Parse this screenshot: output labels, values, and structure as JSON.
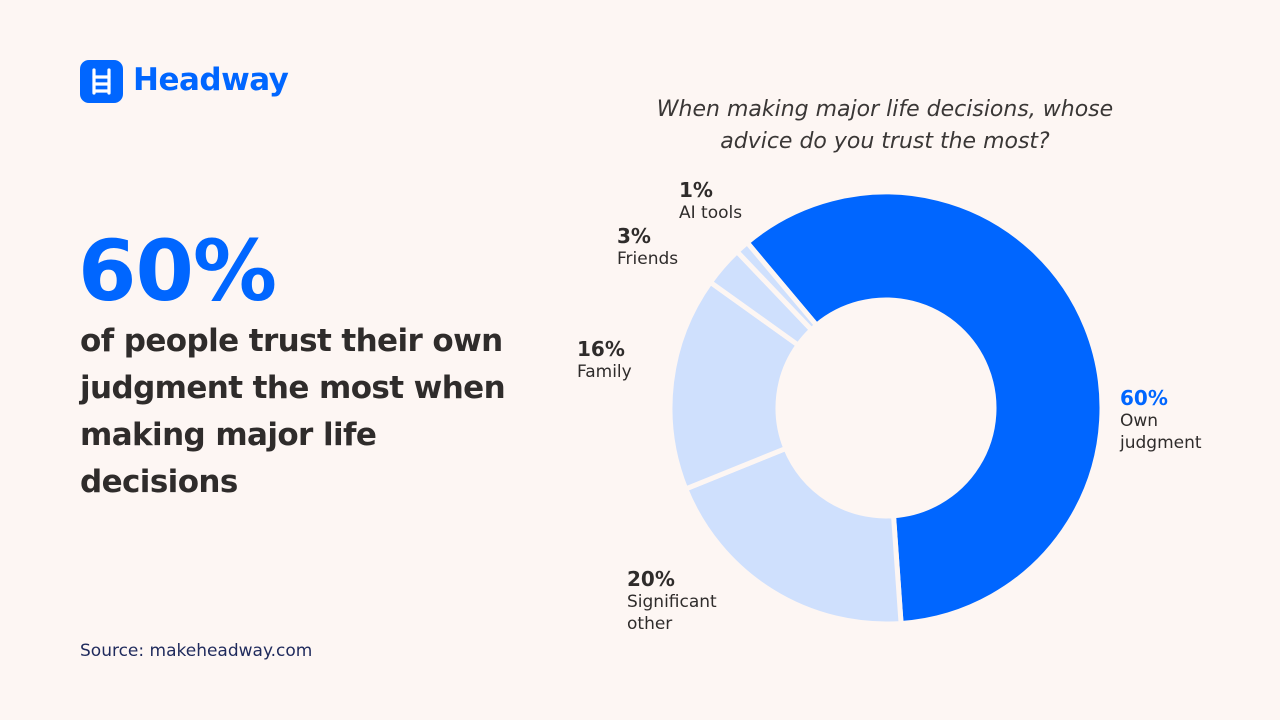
{
  "brand": "Headway",
  "headline": "60%",
  "statement": "of people trust their own judgment the most when making major life decisions",
  "source": "Source: makeheadway.com",
  "chart_data": {
    "type": "donut",
    "title": "When making major life decisions, whose advice do you trust the most?",
    "categories": [
      "Own judgment",
      "Significant other",
      "Family",
      "Friends",
      "AI tools"
    ],
    "values": [
      60,
      20,
      16,
      3,
      1
    ],
    "value_labels": [
      "60%",
      "20%",
      "16%",
      "3%",
      "1%"
    ],
    "colors": [
      "#0066ff",
      "#cfe0fd",
      "#cfe0fd",
      "#cfe0fd",
      "#cfe0fd"
    ]
  }
}
